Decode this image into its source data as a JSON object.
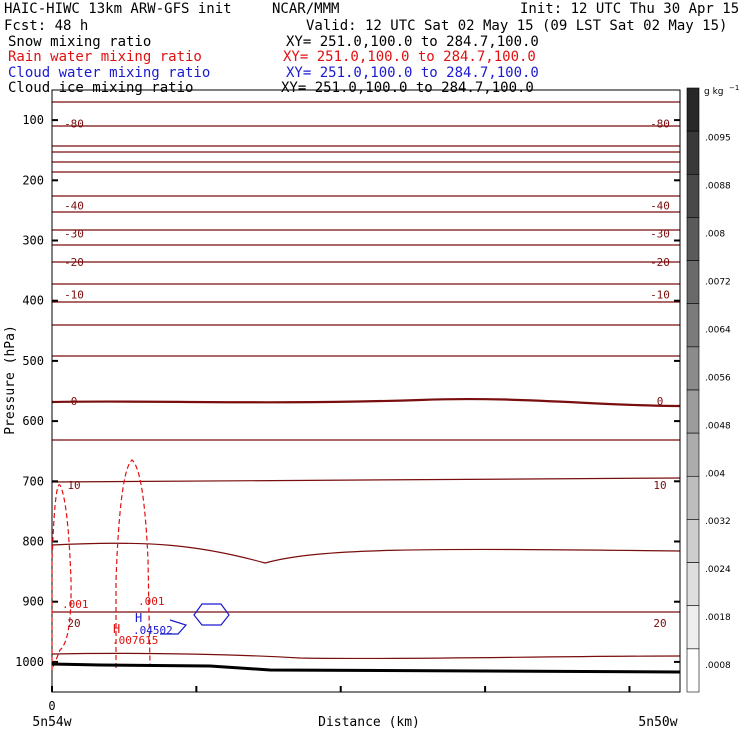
{
  "header": {
    "line1_left": "HAIC-HIWC 13km ARW-GFS init",
    "line1_mid": "NCAR/MMM",
    "line1_right": "Init: 12 UTC Thu 30 Apr 15",
    "line2_left": "Fcst:   48 h",
    "line2_right": "Valid: 12 UTC Sat 02 May 15 (09 LST Sat 02 May 15)"
  },
  "fields": [
    {
      "name": "Snow mixing ratio",
      "xy": "XY= 251.0,100.0 to 284.7,100.0",
      "color": "#000000"
    },
    {
      "name": "Rain water mixing ratio",
      "xy": "XY= 251.0,100.0 to 284.7,100.0",
      "color": "#e01010"
    },
    {
      "name": "Cloud water mixing ratio",
      "xy": "XY= 251.0,100.0 to 284.7,100.0",
      "color": "#1a1ad0"
    },
    {
      "name": "Cloud ice mixing ratio",
      "xy": "XY= 251.0,100.0 to 284.7,100.0",
      "color": "#000000"
    }
  ],
  "chart_data": {
    "type": "line",
    "title": "",
    "xlabel": "Distance (km)",
    "ylabel": "Pressure (hPa)",
    "x_tick_label_zero": "0",
    "x_end_left": "5n54w",
    "x_end_right": "5n50w",
    "y_ticks": [
      100,
      200,
      300,
      400,
      500,
      600,
      700,
      800,
      900,
      1000
    ],
    "ylim": [
      1050,
      50
    ],
    "temperature_labels": [
      {
        "label": "-80",
        "p": 106,
        "side": "both"
      },
      {
        "label": "-40",
        "p": 242,
        "side": "both"
      },
      {
        "label": "-30",
        "p": 288,
        "side": "both"
      },
      {
        "label": "-20",
        "p": 336,
        "side": "both"
      },
      {
        "label": "-10",
        "p": 390,
        "side": "both"
      },
      {
        "label": "0",
        "p": 567,
        "side": "both"
      },
      {
        "label": "10",
        "p": 706,
        "side": "both"
      },
      {
        "label": "20",
        "p": 935,
        "side": "both"
      }
    ],
    "extrema": [
      {
        "label": "H",
        "value": ".007615",
        "color": "#e01010"
      },
      {
        "label": "H",
        "value": ".04502",
        "color": "#1a1ad0"
      }
    ],
    "contour_values": [
      ".001",
      ".001"
    ],
    "colorbar": {
      "units": "g kg",
      "units_exp": "−1",
      "labels": [
        ".0095",
        ".0088",
        ".008",
        ".0072",
        ".0064",
        ".0056",
        ".0048",
        ".004",
        ".0032",
        ".0024",
        ".0018",
        ".0008"
      ]
    }
  }
}
